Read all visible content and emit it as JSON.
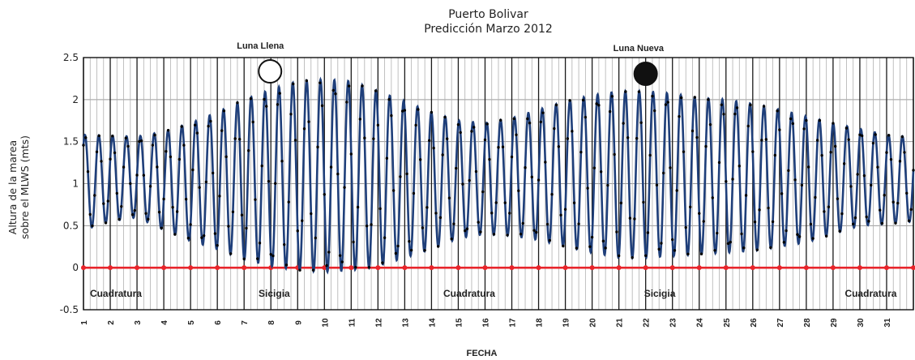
{
  "chart_data": {
    "type": "line",
    "title": "Puerto Bolivar",
    "subtitle": "Predicción Marzo 2012",
    "xlabel": "FECHA",
    "ylabel_line1": "Altura de la marea",
    "ylabel_line2": "sobre el MLWS (mts)",
    "ylim": [
      -0.5,
      2.5
    ],
    "xlim": [
      1,
      32
    ],
    "yticks": [
      "2.5",
      "2",
      "1.5",
      "1",
      "0.5",
      "0",
      "-0.5"
    ],
    "yticks_values": [
      2.5,
      2,
      1.5,
      1,
      0.5,
      0,
      -0.5
    ],
    "xticks": [
      "1",
      "2",
      "3",
      "4",
      "5",
      "6",
      "7",
      "8",
      "9",
      "10",
      "11",
      "12",
      "13",
      "14",
      "15",
      "16",
      "17",
      "18",
      "19",
      "20",
      "21",
      "22",
      "23",
      "24",
      "25",
      "26",
      "27",
      "28",
      "29",
      "30",
      "31"
    ],
    "grid": true,
    "series": [
      {
        "kind": "tide",
        "color": "#1f3f7a",
        "marker_color": "#000000",
        "semidiurnal_cycles_per_day": 1.932,
        "daily_envelope": {
          "day": [
            1,
            2,
            3,
            4,
            5,
            6,
            7,
            8,
            9,
            10,
            11,
            12,
            13,
            14,
            15,
            16,
            17,
            18,
            19,
            20,
            21,
            22,
            23,
            24,
            25,
            26,
            27,
            28,
            29,
            30,
            31,
            32
          ],
          "high": [
            1.58,
            1.57,
            1.56,
            1.62,
            1.72,
            1.85,
            2.0,
            2.12,
            2.22,
            2.24,
            2.22,
            2.1,
            1.98,
            1.85,
            1.75,
            1.72,
            1.78,
            1.88,
            1.98,
            2.05,
            2.1,
            2.1,
            2.07,
            2.02,
            2.0,
            1.95,
            1.88,
            1.8,
            1.72,
            1.65,
            1.58,
            1.55
          ],
          "low": [
            0.45,
            0.55,
            0.6,
            0.45,
            0.32,
            0.22,
            0.1,
            0.02,
            -0.03,
            -0.05,
            -0.03,
            0.02,
            0.12,
            0.22,
            0.35,
            0.4,
            0.38,
            0.33,
            0.25,
            0.18,
            0.12,
            0.12,
            0.14,
            0.16,
            0.18,
            0.2,
            0.25,
            0.3,
            0.4,
            0.5,
            0.52,
            0.55
          ]
        }
      },
      {
        "kind": "reference",
        "value": 0,
        "color": "#e8242a"
      }
    ],
    "annotations": {
      "full_moon": {
        "label": "Luna Llena",
        "day": 8.0
      },
      "new_moon": {
        "label": "Luna Nueva",
        "day": 22.0
      },
      "phases": [
        {
          "label": "Cuadratura",
          "day": 2.3
        },
        {
          "label": "Sicigia",
          "day": 8.6
        },
        {
          "label": "Cuadratura",
          "day": 15.5
        },
        {
          "label": "Sicigia",
          "day": 23.0
        },
        {
          "label": "Cuadratura",
          "day": 30.5
        }
      ]
    }
  }
}
